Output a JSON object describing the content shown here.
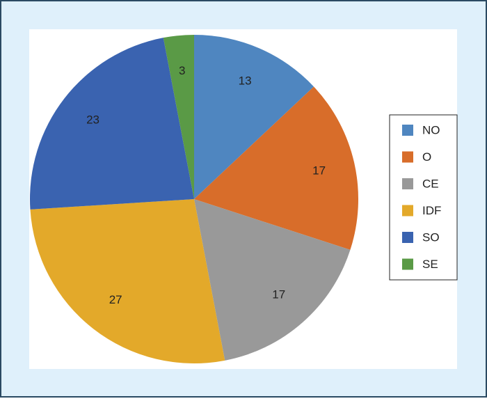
{
  "chart_data": {
    "type": "pie",
    "categories": [
      "NO",
      "O",
      "CE",
      "IDF",
      "SO",
      "SE"
    ],
    "values": [
      13,
      17,
      17,
      27,
      23,
      3
    ],
    "colors": [
      "#4f86c0",
      "#d86d2a",
      "#999999",
      "#e3a92a",
      "#3a63b0",
      "#5a9a46"
    ],
    "legend": "right"
  }
}
